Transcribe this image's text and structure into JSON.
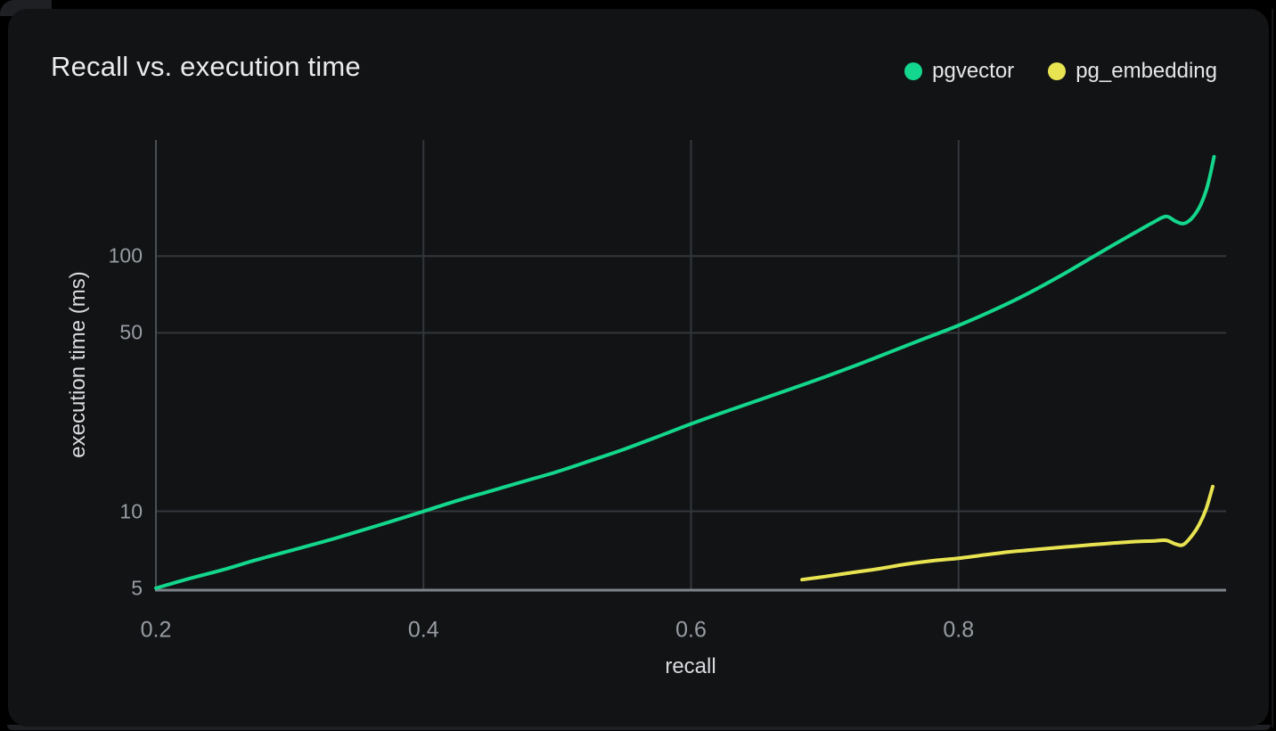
{
  "card": {
    "title": "Recall vs. execution time"
  },
  "colors": {
    "page_background": "#000000",
    "card_background": "#121315",
    "pgvector_line": "#13d78c",
    "pg_embedding_line": "#e8e451",
    "grid_line": "#33373b",
    "y_axis_line": "#4b5054",
    "x_axis_line": "#7d838b",
    "tick_text": "#989da4",
    "axis_title_text": "#d9dbde",
    "title_text": "#e9ebed"
  },
  "chart_data": {
    "type": "line",
    "title": "Recall vs. execution time",
    "xlabel": "recall",
    "ylabel": "execution time (ms)",
    "x_scale": "linear",
    "y_scale": "log",
    "xlim": [
      0.2,
      1.0
    ],
    "ylim": [
      4.95,
      285
    ],
    "x_ticks": [
      0.2,
      0.4,
      0.6,
      0.8
    ],
    "y_ticks": [
      5,
      10,
      50,
      100
    ],
    "grid": true,
    "legend_position": "top-right",
    "series": [
      {
        "name": "pgvector",
        "color": "#13d78c",
        "points": [
          [
            0.2,
            5.0
          ],
          [
            0.225,
            5.45
          ],
          [
            0.25,
            5.9
          ],
          [
            0.275,
            6.45
          ],
          [
            0.3,
            7.0
          ],
          [
            0.325,
            7.6
          ],
          [
            0.35,
            8.3
          ],
          [
            0.375,
            9.1
          ],
          [
            0.4,
            10.0
          ],
          [
            0.425,
            11.0
          ],
          [
            0.45,
            12.0
          ],
          [
            0.475,
            13.1
          ],
          [
            0.5,
            14.3
          ],
          [
            0.525,
            15.8
          ],
          [
            0.55,
            17.5
          ],
          [
            0.575,
            19.6
          ],
          [
            0.6,
            22.0
          ],
          [
            0.625,
            24.5
          ],
          [
            0.65,
            27.2
          ],
          [
            0.675,
            30.2
          ],
          [
            0.7,
            33.6
          ],
          [
            0.725,
            37.6
          ],
          [
            0.75,
            42.3
          ],
          [
            0.775,
            47.6
          ],
          [
            0.8,
            53.5
          ],
          [
            0.825,
            61.0
          ],
          [
            0.85,
            70.5
          ],
          [
            0.875,
            83.0
          ],
          [
            0.9,
            99.0
          ],
          [
            0.915,
            110.0
          ],
          [
            0.93,
            122.0
          ],
          [
            0.945,
            135.0
          ],
          [
            0.955,
            143.0
          ],
          [
            0.962,
            137.0
          ],
          [
            0.968,
            134.0
          ],
          [
            0.974,
            140.0
          ],
          [
            0.98,
            155.0
          ],
          [
            0.985,
            180.0
          ],
          [
            0.988,
            207.0
          ],
          [
            0.991,
            245.0
          ]
        ]
      },
      {
        "name": "pg_embedding",
        "color": "#e8e451",
        "points": [
          [
            0.683,
            5.4
          ],
          [
            0.7,
            5.55
          ],
          [
            0.72,
            5.75
          ],
          [
            0.74,
            5.95
          ],
          [
            0.76,
            6.2
          ],
          [
            0.78,
            6.4
          ],
          [
            0.8,
            6.55
          ],
          [
            0.82,
            6.75
          ],
          [
            0.84,
            6.95
          ],
          [
            0.86,
            7.1
          ],
          [
            0.88,
            7.25
          ],
          [
            0.9,
            7.4
          ],
          [
            0.915,
            7.5
          ],
          [
            0.93,
            7.6
          ],
          [
            0.945,
            7.65
          ],
          [
            0.955,
            7.7
          ],
          [
            0.962,
            7.45
          ],
          [
            0.968,
            7.4
          ],
          [
            0.975,
            8.1
          ],
          [
            0.98,
            8.9
          ],
          [
            0.985,
            10.2
          ],
          [
            0.99,
            12.5
          ]
        ]
      }
    ]
  }
}
